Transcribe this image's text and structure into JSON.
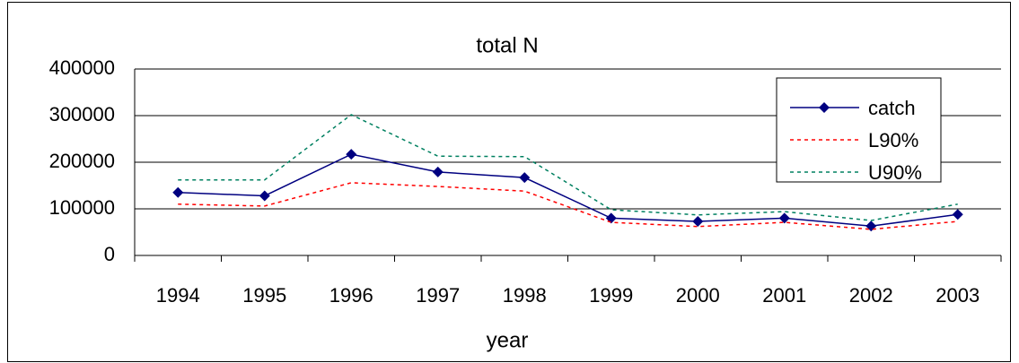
{
  "chart_data": {
    "type": "line",
    "title": "total N",
    "x_label": "year",
    "categories": [
      "1994",
      "1995",
      "1996",
      "1997",
      "1998",
      "1999",
      "2000",
      "2001",
      "2002",
      "2003"
    ],
    "series": [
      {
        "name": "catch",
        "color": "#000080",
        "line_style": "solid",
        "marker": "diamond",
        "values": [
          135000,
          128000,
          217000,
          179000,
          167000,
          80000,
          73000,
          80000,
          63000,
          88000
        ]
      },
      {
        "name": "L90%",
        "color": "#ff0000",
        "line_style": "dashed",
        "values": [
          110000,
          106000,
          156000,
          148000,
          138000,
          71000,
          62000,
          71000,
          56000,
          73000
        ]
      },
      {
        "name": "U90%",
        "color": "#008060",
        "line_style": "dashed",
        "values": [
          162000,
          162000,
          302000,
          213000,
          212000,
          98000,
          87000,
          94000,
          75000,
          110000
        ]
      }
    ],
    "ylim": [
      0,
      400000
    ],
    "yticks": [
      0,
      100000,
      200000,
      300000,
      400000
    ],
    "grid": true,
    "legend": "top-right"
  }
}
